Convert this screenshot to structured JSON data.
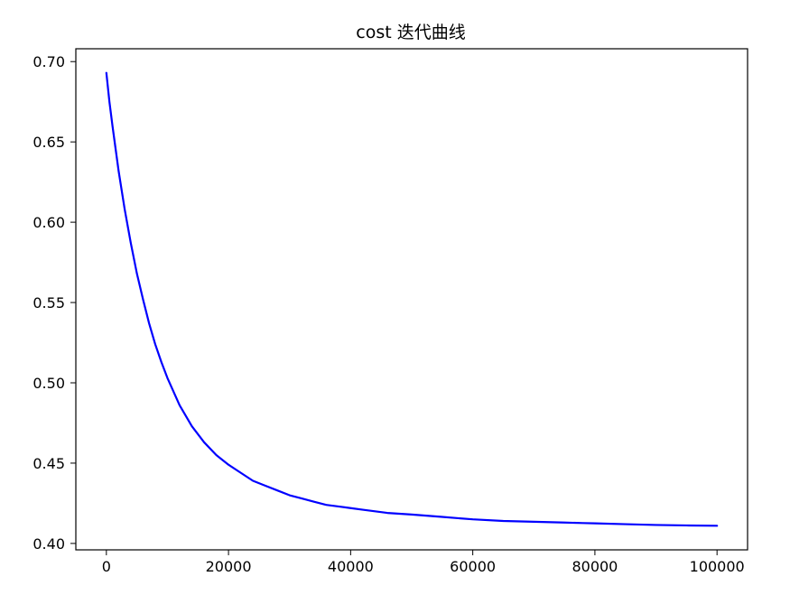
{
  "chart_data": {
    "type": "line",
    "title": "cost 迭代曲线",
    "xlabel": "",
    "ylabel": "",
    "xlim": [
      -5000,
      105000
    ],
    "ylim": [
      0.396,
      0.708
    ],
    "x_ticks": [
      0,
      20000,
      40000,
      60000,
      80000,
      100000
    ],
    "x_tick_labels": [
      "0",
      "20000",
      "40000",
      "60000",
      "80000",
      "100000"
    ],
    "y_ticks": [
      0.4,
      0.45,
      0.5,
      0.55,
      0.6,
      0.65,
      0.7
    ],
    "y_tick_labels": [
      "0.40",
      "0.45",
      "0.50",
      "0.55",
      "0.60",
      "0.65",
      "0.70"
    ],
    "grid": false,
    "series": [
      {
        "name": "cost",
        "color": "#0000ff",
        "x": [
          0,
          500,
          1000,
          1500,
          2000,
          3000,
          4000,
          5000,
          6000,
          7000,
          8000,
          9000,
          10000,
          12000,
          14000,
          16000,
          18000,
          20000,
          22000,
          24000,
          26000,
          28000,
          30000,
          32000,
          34000,
          36000,
          38000,
          40000,
          42000,
          44000,
          46000,
          48000,
          50000,
          55000,
          60000,
          65000,
          70000,
          75000,
          78000,
          80000,
          85000,
          90000,
          95000,
          100000
        ],
        "values": [
          0.693,
          0.675,
          0.66,
          0.646,
          0.632,
          0.608,
          0.587,
          0.568,
          0.552,
          0.537,
          0.524,
          0.513,
          0.503,
          0.486,
          0.473,
          0.463,
          0.455,
          0.449,
          0.444,
          0.439,
          0.436,
          0.433,
          0.43,
          0.428,
          0.426,
          0.424,
          0.423,
          0.422,
          0.421,
          0.42,
          0.419,
          0.4185,
          0.418,
          0.4165,
          0.415,
          0.414,
          0.4135,
          0.413,
          0.4127,
          0.4125,
          0.412,
          0.4115,
          0.4112,
          0.411
        ]
      }
    ]
  }
}
